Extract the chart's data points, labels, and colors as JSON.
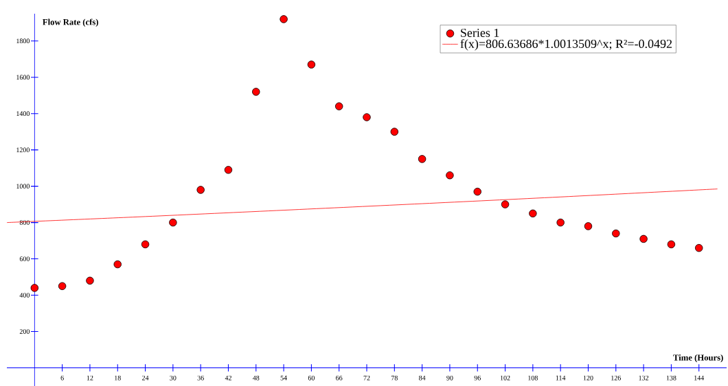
{
  "chart_data": {
    "type": "scatter",
    "xlabel": "Time (Hours)",
    "ylabel": "Flow Rate (cfs)",
    "x": [
      0,
      6,
      12,
      18,
      24,
      30,
      36,
      42,
      48,
      54,
      60,
      66,
      72,
      78,
      84,
      90,
      96,
      102,
      108,
      114,
      120,
      126,
      132,
      138,
      144
    ],
    "series": [
      {
        "name": "Series 1",
        "color": "#ff0000",
        "values": [
          440,
          450,
          480,
          570,
          680,
          800,
          980,
          1090,
          1520,
          1920,
          1670,
          1440,
          1380,
          1300,
          1150,
          1060,
          970,
          900,
          850,
          800,
          780,
          740,
          710,
          680,
          660
        ]
      },
      {
        "name": "f(x)=806.63686*1.0013509^x; R²=-0.0492",
        "type": "line",
        "marker": "none",
        "color": "#ff0000",
        "x": [
          -6,
          24,
          54,
          84,
          114,
          148
        ],
        "values": [
          800,
          833,
          868,
          904,
          941,
          985
        ]
      }
    ],
    "xlim": [
      -6,
      150
    ],
    "ylim": [
      -100,
      1950
    ],
    "xticks": [
      6,
      12,
      18,
      24,
      30,
      36,
      42,
      48,
      54,
      60,
      66,
      72,
      78,
      84,
      90,
      96,
      102,
      108,
      114,
      120,
      126,
      132,
      138,
      144
    ],
    "yticks": [
      200,
      400,
      600,
      800,
      1000,
      1200,
      1400,
      1600,
      1800
    ],
    "grid": false,
    "legend": "top right",
    "marker": "circle"
  }
}
